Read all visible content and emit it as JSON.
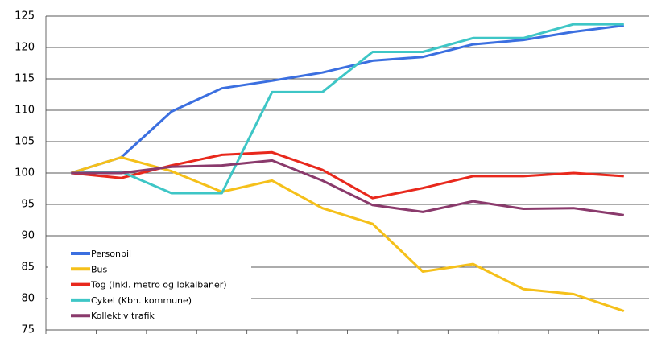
{
  "chart_data": {
    "type": "line",
    "categories": [
      null,
      null,
      null,
      null,
      null,
      null,
      null,
      null,
      null,
      null,
      null,
      null
    ],
    "series": [
      {
        "name": "Personbil",
        "color": "#3b6fe0",
        "values": [
          100,
          102.5,
          109.8,
          113.5,
          114.7,
          116,
          117.9,
          118.5,
          120.5,
          121.2,
          122.5,
          123.5
        ]
      },
      {
        "name": "Bus",
        "color": "#f5c01a",
        "values": [
          100,
          102.5,
          100.3,
          97,
          98.8,
          94.4,
          91.9,
          84.3,
          85.5,
          81.5,
          80.7,
          78
        ]
      },
      {
        "name": "Tog (Inkl. metro og lokalbaner)",
        "color": "#e8281c",
        "values": [
          100,
          99.2,
          101.2,
          102.9,
          103.3,
          100.5,
          96,
          97.6,
          99.5,
          99.5,
          100,
          99.5
        ]
      },
      {
        "name": "Cykel (Kbh. kommune)",
        "color": "#3ec6c6",
        "values": [
          100,
          100.2,
          96.8,
          96.8,
          112.9,
          112.9,
          119.3,
          119.3,
          121.5,
          121.5,
          123.7,
          123.7
        ]
      },
      {
        "name": "Kollektiv trafik",
        "color": "#8a3a6c",
        "values": [
          100,
          100,
          101,
          101.2,
          102,
          98.8,
          94.9,
          93.8,
          95.5,
          94.3,
          94.4,
          93.3
        ]
      }
    ],
    "ylim": [
      75,
      125
    ],
    "yticks": [
      75,
      80,
      85,
      90,
      95,
      100,
      105,
      110,
      115,
      120,
      125
    ],
    "grid": true
  }
}
